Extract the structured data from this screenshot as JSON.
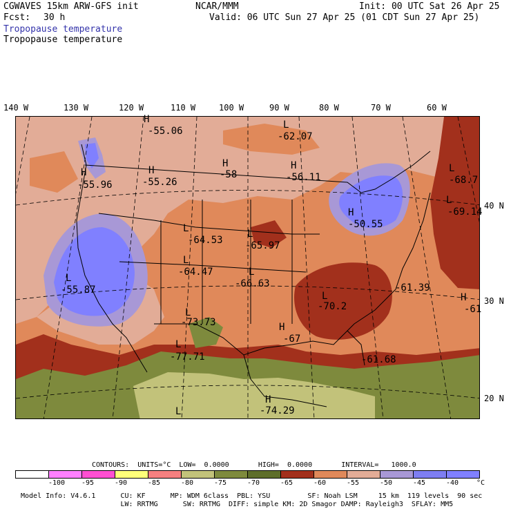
{
  "header": {
    "model": "CGWAVES 15km ARW-GFS init",
    "fcst_label": "Fcst:",
    "fcst_value": "30 h",
    "center": "NCAR/MMM",
    "init": "Init: 00 UTC Sat 26 Apr 25",
    "valid": "Valid: 06 UTC Sun 27 Apr 25 (01 CDT Sun 27 Apr 25)",
    "field_1": "Tropopause temperature",
    "field_2": "Tropopause temperature"
  },
  "longitudes": [
    "140 W",
    "130 W",
    "120 W",
    "110 W",
    "100 W",
    "90 W",
    "80 W",
    "70 W",
    "60 W"
  ],
  "latitudes": [
    "40 N",
    "30 N",
    "20 N"
  ],
  "map_labels": [
    {
      "text": "H"
    },
    {
      "text": "-55.06"
    },
    {
      "text": "L"
    },
    {
      "text": "-62.07"
    },
    {
      "text": "H"
    },
    {
      "text": "-55.96"
    },
    {
      "text": "H"
    },
    {
      "text": "-55.26"
    },
    {
      "text": "H"
    },
    {
      "text": "-58"
    },
    {
      "text": "H"
    },
    {
      "text": "-56.11"
    },
    {
      "text": "L"
    },
    {
      "text": "-68.7"
    },
    {
      "text": "L"
    },
    {
      "text": "-69.14"
    },
    {
      "text": "L"
    },
    {
      "text": "-64.53"
    },
    {
      "text": "L"
    },
    {
      "text": "-65.97"
    },
    {
      "text": "H"
    },
    {
      "text": "-50.55"
    },
    {
      "text": "L"
    },
    {
      "text": "-64.47"
    },
    {
      "text": "L"
    },
    {
      "text": "-55.87"
    },
    {
      "text": "L"
    },
    {
      "text": "-66.63"
    },
    {
      "text": "-61.39"
    },
    {
      "text": "L"
    },
    {
      "text": "-70.2"
    },
    {
      "text": "H"
    },
    {
      "text": "-61"
    },
    {
      "text": "L"
    },
    {
      "text": "-73.73"
    },
    {
      "text": "H"
    },
    {
      "text": "-67"
    },
    {
      "text": "L"
    },
    {
      "text": "-77.71"
    },
    {
      "text": "-61.68"
    },
    {
      "text": "H"
    },
    {
      "text": "-74.29"
    },
    {
      "text": "L"
    }
  ],
  "contours": {
    "text": "CONTOURS:  UNITS=°C  LOW=  0.0000       HIGH=  0.0000       INTERVAL=   1000.0"
  },
  "colorbar": {
    "colors": [
      "#ffffff",
      "#ff80ff",
      "#ff4fd2",
      "#ffff7a",
      "#f58080",
      "#c2c27a",
      "#7e8a3d",
      "#5e6e2a",
      "#a2301c",
      "#e0895a",
      "#e2ac97",
      "#a898d6",
      "#7e7ef2",
      "#8080ff"
    ],
    "ticks": [
      "-100",
      "-95",
      "-90",
      "-85",
      "-80",
      "-75",
      "-70",
      "-65",
      "-60",
      "-55",
      "-50",
      "-45",
      "-40",
      "°C"
    ]
  },
  "footer": {
    "line1": "Model Info: V4.6.1      CU: KF      MP: WDM 6class  PBL: YSU         SF: Noah LSM     15 km  119 levels  90 sec",
    "line2": "                        LW: RRTMG      SW: RRTMG  DIFF: simple KM: 2D Smagor DAMP: Rayleigh3  SFLAY: MM5"
  }
}
